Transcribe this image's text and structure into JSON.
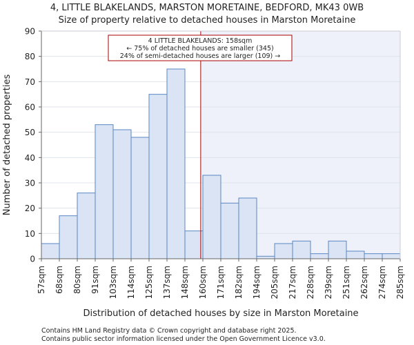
{
  "chart_data": {
    "type": "bar",
    "title": "4, LITTLE BLAKELANDS, MARSTON MORETAINE, BEDFORD, MK43 0WB",
    "subtitle": "Size of property relative to detached houses in Marston Moretaine",
    "xlabel": "Distribution of detached houses by size in Marston Moretaine",
    "ylabel": "Number of detached properties",
    "ylim": [
      0,
      90
    ],
    "yticks": [
      0,
      10,
      20,
      30,
      40,
      50,
      60,
      70,
      80,
      90
    ],
    "bin_edges": [
      "57sqm",
      "68sqm",
      "80sqm",
      "91sqm",
      "103sqm",
      "114sqm",
      "125sqm",
      "137sqm",
      "148sqm",
      "160sqm",
      "171sqm",
      "182sqm",
      "194sqm",
      "205sqm",
      "217sqm",
      "228sqm",
      "239sqm",
      "251sqm",
      "262sqm",
      "274sqm",
      "285sqm"
    ],
    "values": [
      6,
      17,
      26,
      53,
      51,
      48,
      65,
      75,
      11,
      33,
      22,
      24,
      1,
      6,
      7,
      2,
      7,
      3,
      2,
      2
    ],
    "property_marker": {
      "bin_position": 8.88
    },
    "annotation": {
      "line1": "4 LITTLE BLAKELANDS: 158sqm",
      "line2": "← 75% of detached houses are smaller (345)",
      "line3": "24% of semi-detached houses are larger (109) →"
    },
    "colors": {
      "bar_fill": "#dae4f4",
      "bar_edge": "#5a86c2",
      "marker_line": "#a80000",
      "highlight_bg": "#eef1fa",
      "annotation_border": "#a80000"
    }
  },
  "footer": {
    "line1": "Contains HM Land Registry data © Crown copyright and database right 2025.",
    "line2": "Contains public sector information licensed under the Open Government Licence v3.0."
  }
}
